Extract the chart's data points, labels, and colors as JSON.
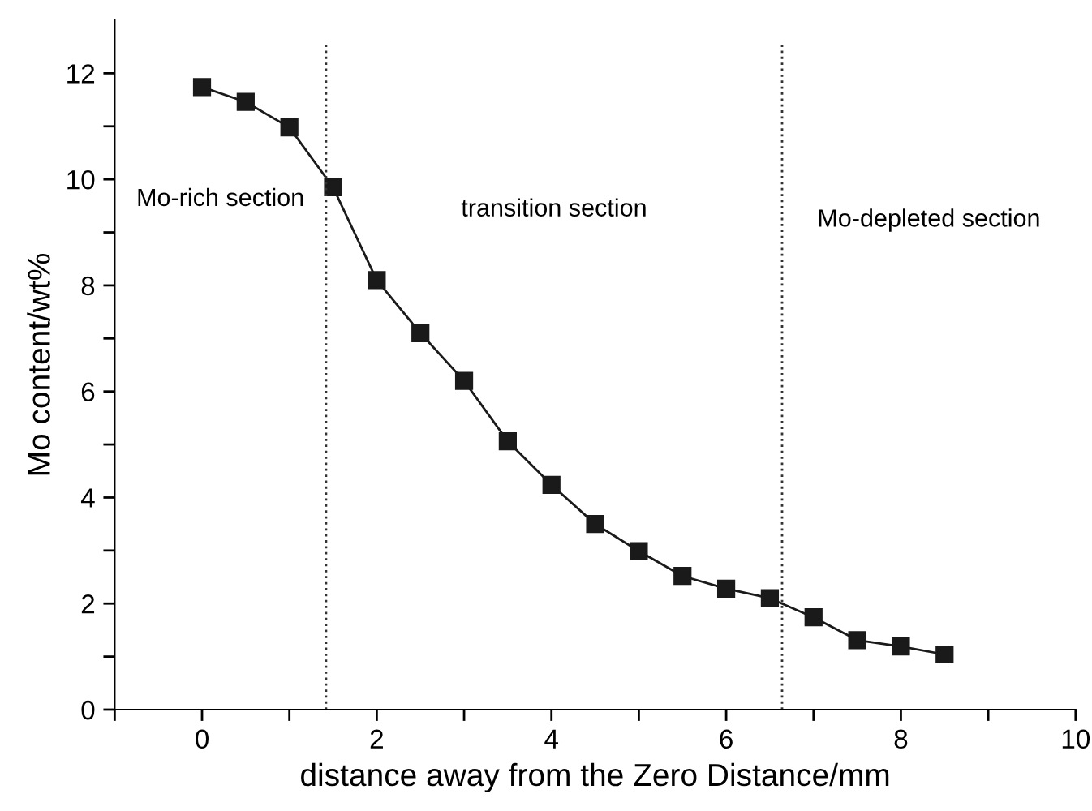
{
  "chart_data": {
    "type": "line",
    "xlabel": "distance away from the Zero Distance/mm",
    "ylabel": "Mo content/wt%",
    "x": [
      0,
      0.5,
      1,
      1.5,
      2,
      2.5,
      3,
      3.5,
      4,
      4.5,
      5,
      5.5,
      6,
      6.5,
      7,
      7.5,
      8,
      8.5
    ],
    "series": [
      {
        "color": "#1a1a1a",
        "values": [
          11.74,
          11.46,
          10.98,
          9.85,
          8.1,
          7.1,
          6.2,
          5.06,
          4.24,
          3.5,
          2.99,
          2.52,
          2.28,
          2.1,
          1.74,
          1.31,
          1.19,
          1.04
        ]
      }
    ],
    "marker": "square",
    "line_style": "solid",
    "xlim": [
      -1,
      10
    ],
    "ylim": [
      0,
      13
    ],
    "xticks": [
      {
        "value": -1,
        "label": null
      },
      0,
      {
        "value": 1,
        "label": null
      },
      2,
      {
        "value": 3,
        "label": null
      },
      4,
      {
        "value": 5,
        "label": null
      },
      6,
      {
        "value": 7,
        "label": null
      },
      8,
      {
        "value": 9,
        "label": null
      },
      10
    ],
    "yticks": [
      0,
      {
        "value": 1,
        "label": null
      },
      2,
      {
        "value": 3,
        "label": null
      },
      4,
      {
        "value": 5,
        "label": null
      },
      6,
      {
        "value": 7,
        "label": null
      },
      8,
      {
        "value": 9,
        "label": null
      },
      10,
      {
        "value": 11,
        "label": null
      },
      12
    ],
    "ref_lines": [
      {
        "axis": "x",
        "value": 1.42,
        "line_style": "dotted",
        "color": "#333333"
      },
      {
        "axis": "x",
        "value": 6.64,
        "line_style": "dotted",
        "color": "#333333"
      }
    ],
    "annotations": [
      "Mo-rich section",
      "transition section",
      "Mo-depleted section"
    ],
    "grid": false,
    "legend": false
  }
}
